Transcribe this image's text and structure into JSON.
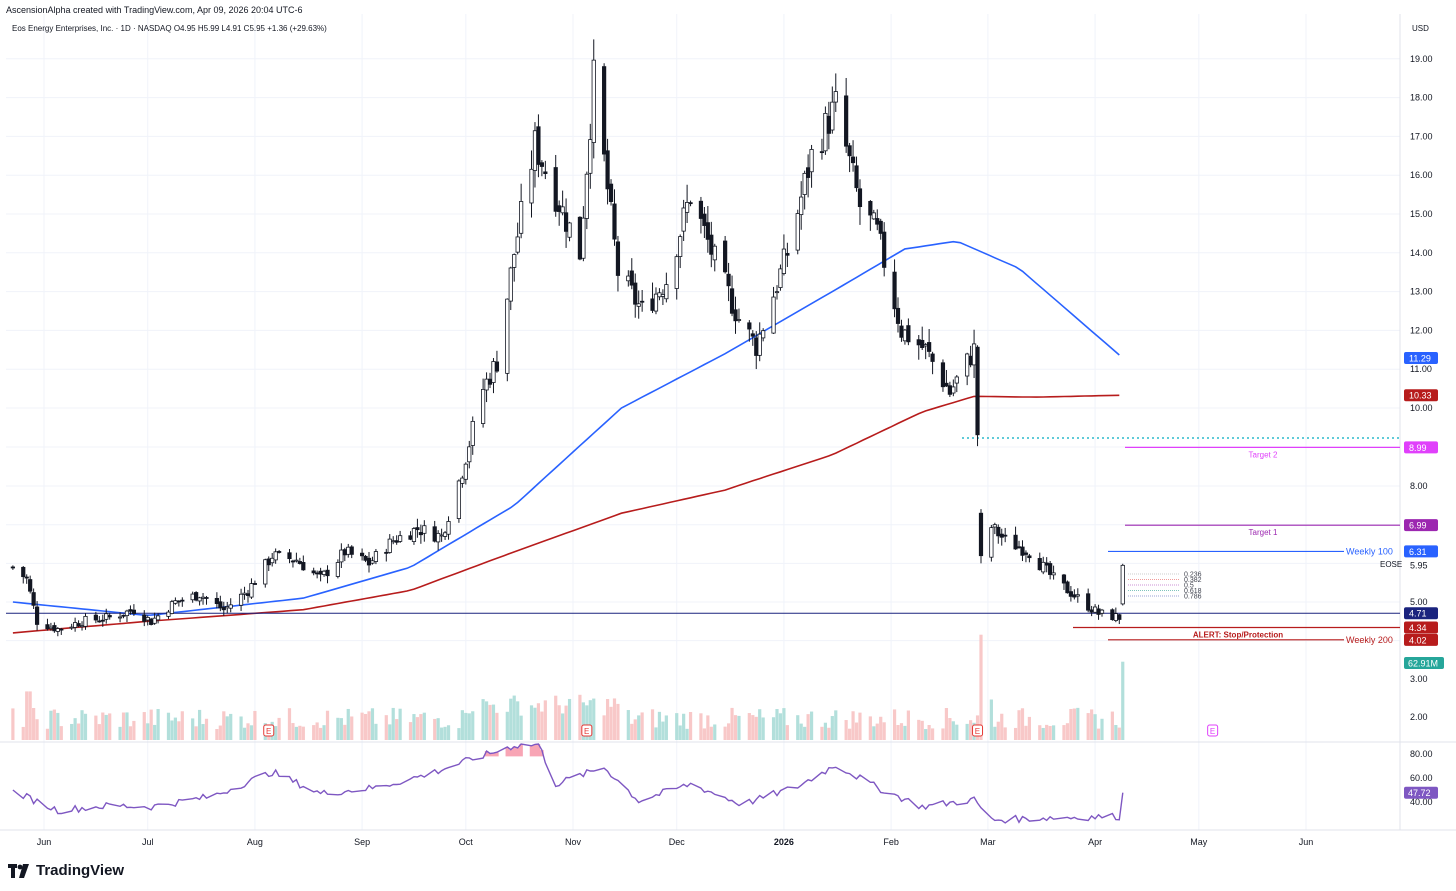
{
  "header": {
    "credit": "AscensionAlpha created with TradingView.com, Apr 09, 2026 20:04 UTC-6",
    "legend": "Eos Energy Enterprises, Inc. · 1D · NASDAQ  O4.95  H5.99  L4.91  C5.95  +1.36 (+29.63%)",
    "currency": "USD"
  },
  "footer": {
    "brand": "TradingView"
  },
  "colors": {
    "up": "#131722",
    "down": "#131722",
    "ma100": "#2962ff",
    "ma200": "#b71c1c",
    "target2": "#e040fb",
    "target1": "#9c27b0",
    "weekly100": "#2962ff",
    "weekly200": "#b71c1c",
    "support": "#1a237e",
    "rsi": "#7e57c2",
    "vol_up": "#b2dfdb",
    "vol_down": "#f8c8c8"
  },
  "chart_data": {
    "type": "candlestick",
    "symbol": "EOSE",
    "last_price": 5.95,
    "y_ticks": [
      19.0,
      18.0,
      17.0,
      16.0,
      15.0,
      14.0,
      13.0,
      12.0,
      11.0,
      10.0,
      8.0,
      5.95,
      5.0
    ],
    "y_tick_labels": [
      "19.00",
      "18.00",
      "17.00",
      "16.00",
      "15.00",
      "14.00",
      "13.00",
      "12.00",
      "11.00",
      "10.00",
      "8.00",
      "5.95",
      "5.00"
    ],
    "x_labels": [
      "Jun",
      "Jul",
      "Aug",
      "Sep",
      "Oct",
      "Nov",
      "Dec",
      "2026",
      "Feb",
      "Mar",
      "Apr",
      "May",
      "Jun"
    ],
    "x_dates": [
      "2025-06-01",
      "2025-07-01",
      "2025-08-01",
      "2025-09-01",
      "2025-10-01",
      "2025-11-01",
      "2025-12-01",
      "2026-01-01",
      "2026-02-01",
      "2026-03-01",
      "2026-04-01",
      "2026-05-01",
      "2026-06-01"
    ],
    "closes_anchors": [
      [
        "2025-05-23",
        5.9
      ],
      [
        "2025-05-27",
        5.6
      ],
      [
        "2025-05-30",
        4.5
      ],
      [
        "2025-06-05",
        4.3
      ],
      [
        "2025-06-12",
        4.5
      ],
      [
        "2025-06-20",
        4.6
      ],
      [
        "2025-06-27",
        4.8
      ],
      [
        "2025-07-02",
        4.5
      ],
      [
        "2025-07-09",
        5.0
      ],
      [
        "2025-07-16",
        5.2
      ],
      [
        "2025-07-23",
        4.8
      ],
      [
        "2025-07-30",
        5.3
      ],
      [
        "2025-08-06",
        6.2
      ],
      [
        "2025-08-13",
        6.1
      ],
      [
        "2025-08-20",
        5.6
      ],
      [
        "2025-08-27",
        6.3
      ],
      [
        "2025-09-03",
        6.0
      ],
      [
        "2025-09-10",
        6.6
      ],
      [
        "2025-09-17",
        6.9
      ],
      [
        "2025-09-24",
        6.7
      ],
      [
        "2025-09-30",
        8.4
      ],
      [
        "2025-10-06",
        10.5
      ],
      [
        "2025-10-10",
        11.2
      ],
      [
        "2025-10-15",
        14.0
      ],
      [
        "2025-10-21",
        16.8
      ],
      [
        "2025-10-27",
        15.5
      ],
      [
        "2025-11-03",
        14.0
      ],
      [
        "2025-11-07",
        18.5
      ],
      [
        "2025-11-14",
        13.5
      ],
      [
        "2025-11-21",
        12.5
      ],
      [
        "2025-11-28",
        13.3
      ],
      [
        "2025-12-05",
        15.5
      ],
      [
        "2025-12-12",
        13.8
      ],
      [
        "2025-12-19",
        12.3
      ],
      [
        "2025-12-24",
        11.6
      ],
      [
        "2026-01-02",
        14.0
      ],
      [
        "2026-01-09",
        16.5
      ],
      [
        "2026-01-16",
        17.8
      ],
      [
        "2026-01-23",
        15.2
      ],
      [
        "2026-01-28",
        14.5
      ],
      [
        "2026-02-04",
        12.0
      ],
      [
        "2026-02-11",
        11.5
      ],
      [
        "2026-02-18",
        10.4
      ],
      [
        "2026-02-25",
        11.5
      ],
      [
        "2026-02-27",
        7.2
      ],
      [
        "2026-03-06",
        6.6
      ],
      [
        "2026-03-13",
        6.3
      ],
      [
        "2026-03-20",
        5.6
      ],
      [
        "2026-03-27",
        5.1
      ],
      [
        "2026-04-02",
        4.7
      ],
      [
        "2026-04-08",
        4.6
      ],
      [
        "2026-04-09",
        5.95
      ]
    ],
    "moving_averages": [
      {
        "name": "MA100",
        "points": [
          [
            "2025-05-23",
            5.0
          ],
          [
            "2025-07-01",
            4.65
          ],
          [
            "2025-08-15",
            5.1
          ],
          [
            "2025-09-15",
            5.9
          ],
          [
            "2025-10-15",
            7.5
          ],
          [
            "2025-11-15",
            10.0
          ],
          [
            "2025-12-15",
            11.4
          ],
          [
            "2026-01-15",
            13.0
          ],
          [
            "2026-02-05",
            14.1
          ],
          [
            "2026-02-20",
            14.3
          ],
          [
            "2026-03-10",
            13.6
          ],
          [
            "2026-04-09",
            11.29
          ]
        ]
      },
      {
        "name": "MA200",
        "points": [
          [
            "2025-05-23",
            4.2
          ],
          [
            "2025-07-01",
            4.5
          ],
          [
            "2025-08-15",
            4.8
          ],
          [
            "2025-09-15",
            5.3
          ],
          [
            "2025-10-15",
            6.3
          ],
          [
            "2025-11-15",
            7.3
          ],
          [
            "2025-12-15",
            7.9
          ],
          [
            "2026-01-15",
            8.8
          ],
          [
            "2026-02-10",
            9.9
          ],
          [
            "2026-02-25",
            10.3
          ],
          [
            "2026-03-15",
            10.28
          ],
          [
            "2026-04-09",
            10.33
          ]
        ]
      }
    ],
    "price_labels": [
      {
        "value": 11.29,
        "text": "11.29",
        "color": "#2962ff"
      },
      {
        "value": 10.33,
        "text": "10.33",
        "color": "#b71c1c"
      },
      {
        "value": 8.99,
        "text": "8.99",
        "color": "#e040fb"
      },
      {
        "value": 6.99,
        "text": "6.99",
        "color": "#9c27b0"
      },
      {
        "value": 6.31,
        "text": "6.31",
        "color": "#2962ff"
      },
      {
        "value": 4.71,
        "text": "4.71",
        "color": "#1a237e"
      },
      {
        "value": 4.34,
        "text": "4.34",
        "color": "#b71c1c"
      },
      {
        "value": 4.02,
        "text": "4.02",
        "color": "#b71c1c"
      }
    ],
    "annotations": [
      {
        "text": "Target 2",
        "value": 8.99
      },
      {
        "text": "Target 1",
        "value": 6.99
      },
      {
        "text": "Weekly 100",
        "value": 6.31
      },
      {
        "text": "ALERT: Stop/Protection",
        "value": 4.34
      },
      {
        "text": "Weekly 200",
        "value": 4.02
      }
    ],
    "fib_levels": [
      "0.236",
      "0.382",
      "0.5",
      "0.618",
      "0.786"
    ],
    "volume": {
      "last_label": "62.91M",
      "ticks": [
        "3.00",
        "2.00"
      ],
      "earnings_marker": "E"
    },
    "rsi": {
      "last_label": "47.72",
      "ticks": [
        "80.00",
        "60.00",
        "40.00"
      ],
      "anchors": [
        [
          "2025-05-23",
          49
        ],
        [
          "2025-06-05",
          33
        ],
        [
          "2025-06-20",
          37
        ],
        [
          "2025-07-02",
          36
        ],
        [
          "2025-07-20",
          45
        ],
        [
          "2025-08-06",
          65
        ],
        [
          "2025-08-20",
          47
        ],
        [
          "2025-09-05",
          52
        ],
        [
          "2025-09-20",
          63
        ],
        [
          "2025-10-01",
          74
        ],
        [
          "2025-10-15",
          87
        ],
        [
          "2025-10-22",
          88
        ],
        [
          "2025-10-27",
          55
        ],
        [
          "2025-11-10",
          69
        ],
        [
          "2025-11-20",
          41
        ],
        [
          "2025-12-05",
          55
        ],
        [
          "2025-12-20",
          38
        ],
        [
          "2026-01-05",
          53
        ],
        [
          "2026-01-16",
          71
        ],
        [
          "2026-01-28",
          52
        ],
        [
          "2026-02-10",
          36
        ],
        [
          "2026-02-25",
          42
        ],
        [
          "2026-03-02",
          25
        ],
        [
          "2026-03-20",
          27
        ],
        [
          "2026-04-08",
          28
        ],
        [
          "2026-04-09",
          47.72
        ]
      ]
    }
  }
}
